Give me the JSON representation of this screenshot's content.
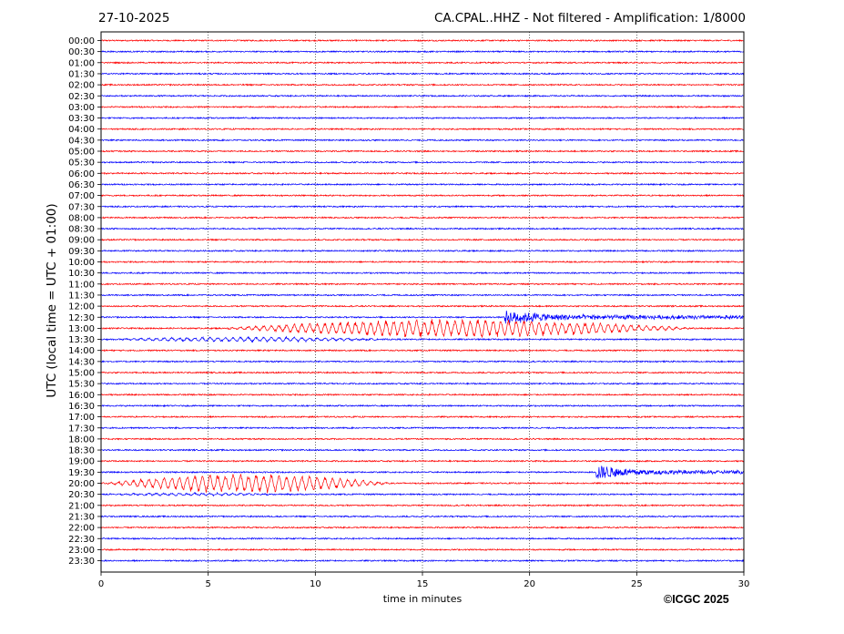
{
  "header": {
    "date": "27-10-2025",
    "title": "CA.CPAL..HHZ - Not filtered - Amplification: 1/8000"
  },
  "footer": {
    "copyright": "©ICGC 2025"
  },
  "chart_data": {
    "type": "line",
    "title": "CA.CPAL..HHZ - Not filtered - Amplification: 1/8000",
    "date": "27-10-2025",
    "xlabel": "time in minutes",
    "ylabel": "UTC (local time = UTC + 01:00)",
    "xlim": [
      0,
      30
    ],
    "xticks": [
      0,
      5,
      10,
      15,
      20,
      25,
      30
    ],
    "grid": "vertical dotted lines at x ticks",
    "row_labels": [
      "00:00",
      "00:30",
      "01:00",
      "01:30",
      "02:00",
      "02:30",
      "03:00",
      "03:30",
      "04:00",
      "04:30",
      "05:00",
      "05:30",
      "06:00",
      "06:30",
      "07:00",
      "07:30",
      "08:00",
      "08:30",
      "09:00",
      "09:30",
      "10:00",
      "10:30",
      "11:00",
      "11:30",
      "12:00",
      "12:30",
      "13:00",
      "13:30",
      "14:00",
      "14:30",
      "15:00",
      "15:30",
      "16:00",
      "16:30",
      "17:00",
      "17:30",
      "18:00",
      "18:30",
      "19:00",
      "19:30",
      "20:00",
      "20:30",
      "21:00",
      "21:30",
      "22:00",
      "22:30",
      "23:00",
      "23:30"
    ],
    "row_colors": [
      "#ff0000",
      "#0000ff"
    ],
    "noise_amplitude": 0.06,
    "events": [
      {
        "row": "12:30",
        "start_min": 18.8,
        "end_min": 30,
        "peak_amplitude": 0.5,
        "style": "spike"
      },
      {
        "row": "13:00",
        "start_min": 5.5,
        "end_min": 30,
        "peak_amplitude": 0.85,
        "style": "oscillation"
      },
      {
        "row": "13:30",
        "start_min": 0,
        "end_min": 15,
        "peak_amplitude": 0.22,
        "style": "oscillation"
      },
      {
        "row": "19:30",
        "start_min": 23.1,
        "end_min": 30,
        "peak_amplitude": 0.6,
        "style": "spike"
      },
      {
        "row": "20:00",
        "start_min": 0,
        "end_min": 15,
        "peak_amplitude": 0.9,
        "style": "oscillation"
      },
      {
        "row": "20:30",
        "start_min": 0,
        "end_min": 10,
        "peak_amplitude": 0.12,
        "style": "oscillation"
      }
    ]
  }
}
